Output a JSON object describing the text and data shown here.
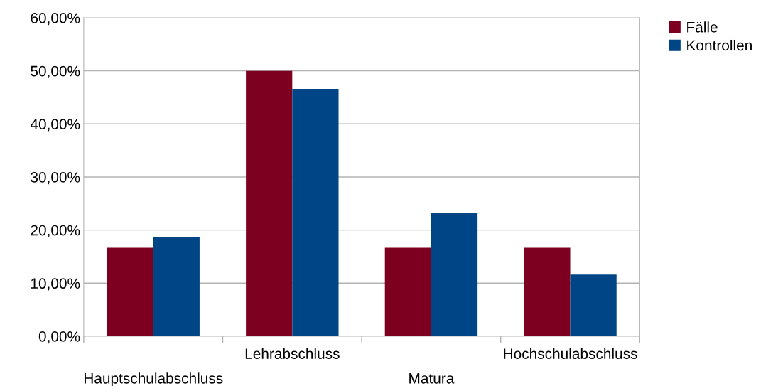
{
  "chart_data": {
    "type": "bar",
    "categories": [
      "Hauptschulabschluss",
      "Lehrabschluss",
      "Matura",
      "Hochschulabschluss"
    ],
    "series": [
      {
        "name": "Fälle",
        "color": "#7e0021",
        "values": [
          16.67,
          50.0,
          16.67,
          16.67
        ]
      },
      {
        "name": "Kontrollen",
        "color": "#004586",
        "values": [
          18.6,
          46.6,
          23.3,
          11.6
        ]
      }
    ],
    "ylim": [
      0,
      60
    ],
    "yticks": [
      {
        "value": 0,
        "label": "0,00%"
      },
      {
        "value": 10,
        "label": "10,00%"
      },
      {
        "value": 20,
        "label": "20,00%"
      },
      {
        "value": 30,
        "label": "30,00%"
      },
      {
        "value": 40,
        "label": "40,00%"
      },
      {
        "value": 50,
        "label": "50,00%"
      },
      {
        "value": 60,
        "label": "60,00%"
      }
    ],
    "grid": "y",
    "legend": "top right"
  }
}
